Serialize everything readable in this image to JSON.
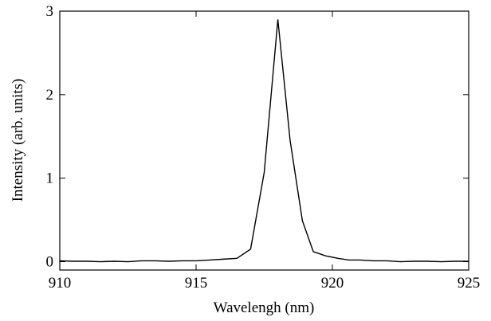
{
  "chart_data": {
    "type": "line",
    "x_label": "Wavelengh (nm)",
    "y_label": "Intensity (arb. units)",
    "x": [
      910,
      910.5,
      911,
      911.5,
      912,
      912.5,
      913,
      913.5,
      914,
      914.5,
      915,
      915.5,
      916,
      916.5,
      917,
      917.5,
      918,
      918.45,
      918.9,
      919.3,
      919.75,
      920.2,
      920.6,
      921,
      921.5,
      922,
      922.5,
      923,
      923.5,
      924,
      924.5,
      925
    ],
    "series": [
      {
        "color": "#000000",
        "values": [
          0.01,
          0.005,
          0.005,
          0,
          0.005,
          0,
          0.01,
          0.01,
          0.005,
          0.01,
          0.01,
          0.02,
          0.03,
          0.04,
          0.15,
          1.07,
          2.9,
          1.45,
          0.49,
          0.12,
          0.07,
          0.04,
          0.02,
          0.02,
          0.01,
          0.01,
          0,
          0.005,
          0.005,
          0,
          0.005,
          0.005
        ]
      }
    ],
    "xlim": [
      910,
      925
    ],
    "xticks": [
      910,
      915,
      920,
      925
    ],
    "ylim": [
      -0.1,
      3
    ],
    "yticks": [
      0,
      1,
      2,
      3
    ]
  }
}
